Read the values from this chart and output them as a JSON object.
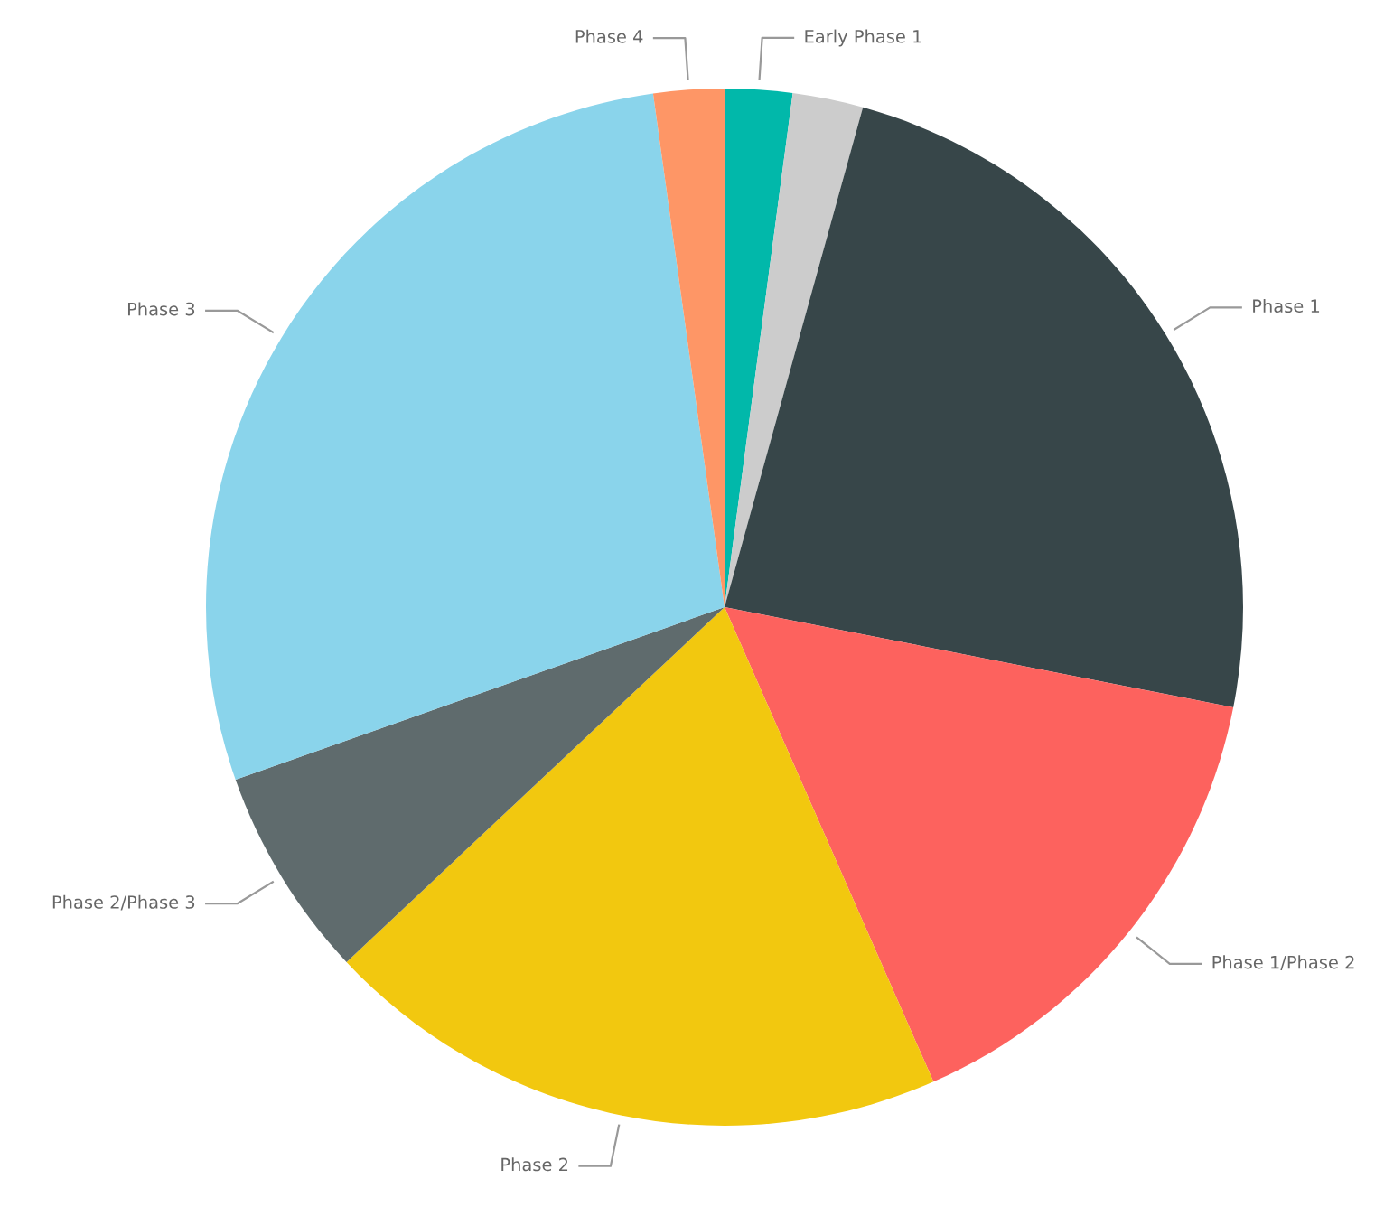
{
  "chart_data": {
    "type": "pie",
    "categories": [
      "Early Phase 1",
      null,
      "Phase 1",
      "Phase 1/Phase 2",
      "Phase 2",
      "Phase 2/Phase 3",
      "Phase 3",
      "Phase 4"
    ],
    "values": [
      2.1,
      2.2,
      23.8,
      15.3,
      19.6,
      6.6,
      28.2,
      2.2
    ],
    "colors": [
      "#01b8aa",
      "#cccccc",
      "#374649",
      "#fd625e",
      "#f2c80f",
      "#5f6b6d",
      "#8ad4eb",
      "#fe9666"
    ],
    "legend": false
  }
}
